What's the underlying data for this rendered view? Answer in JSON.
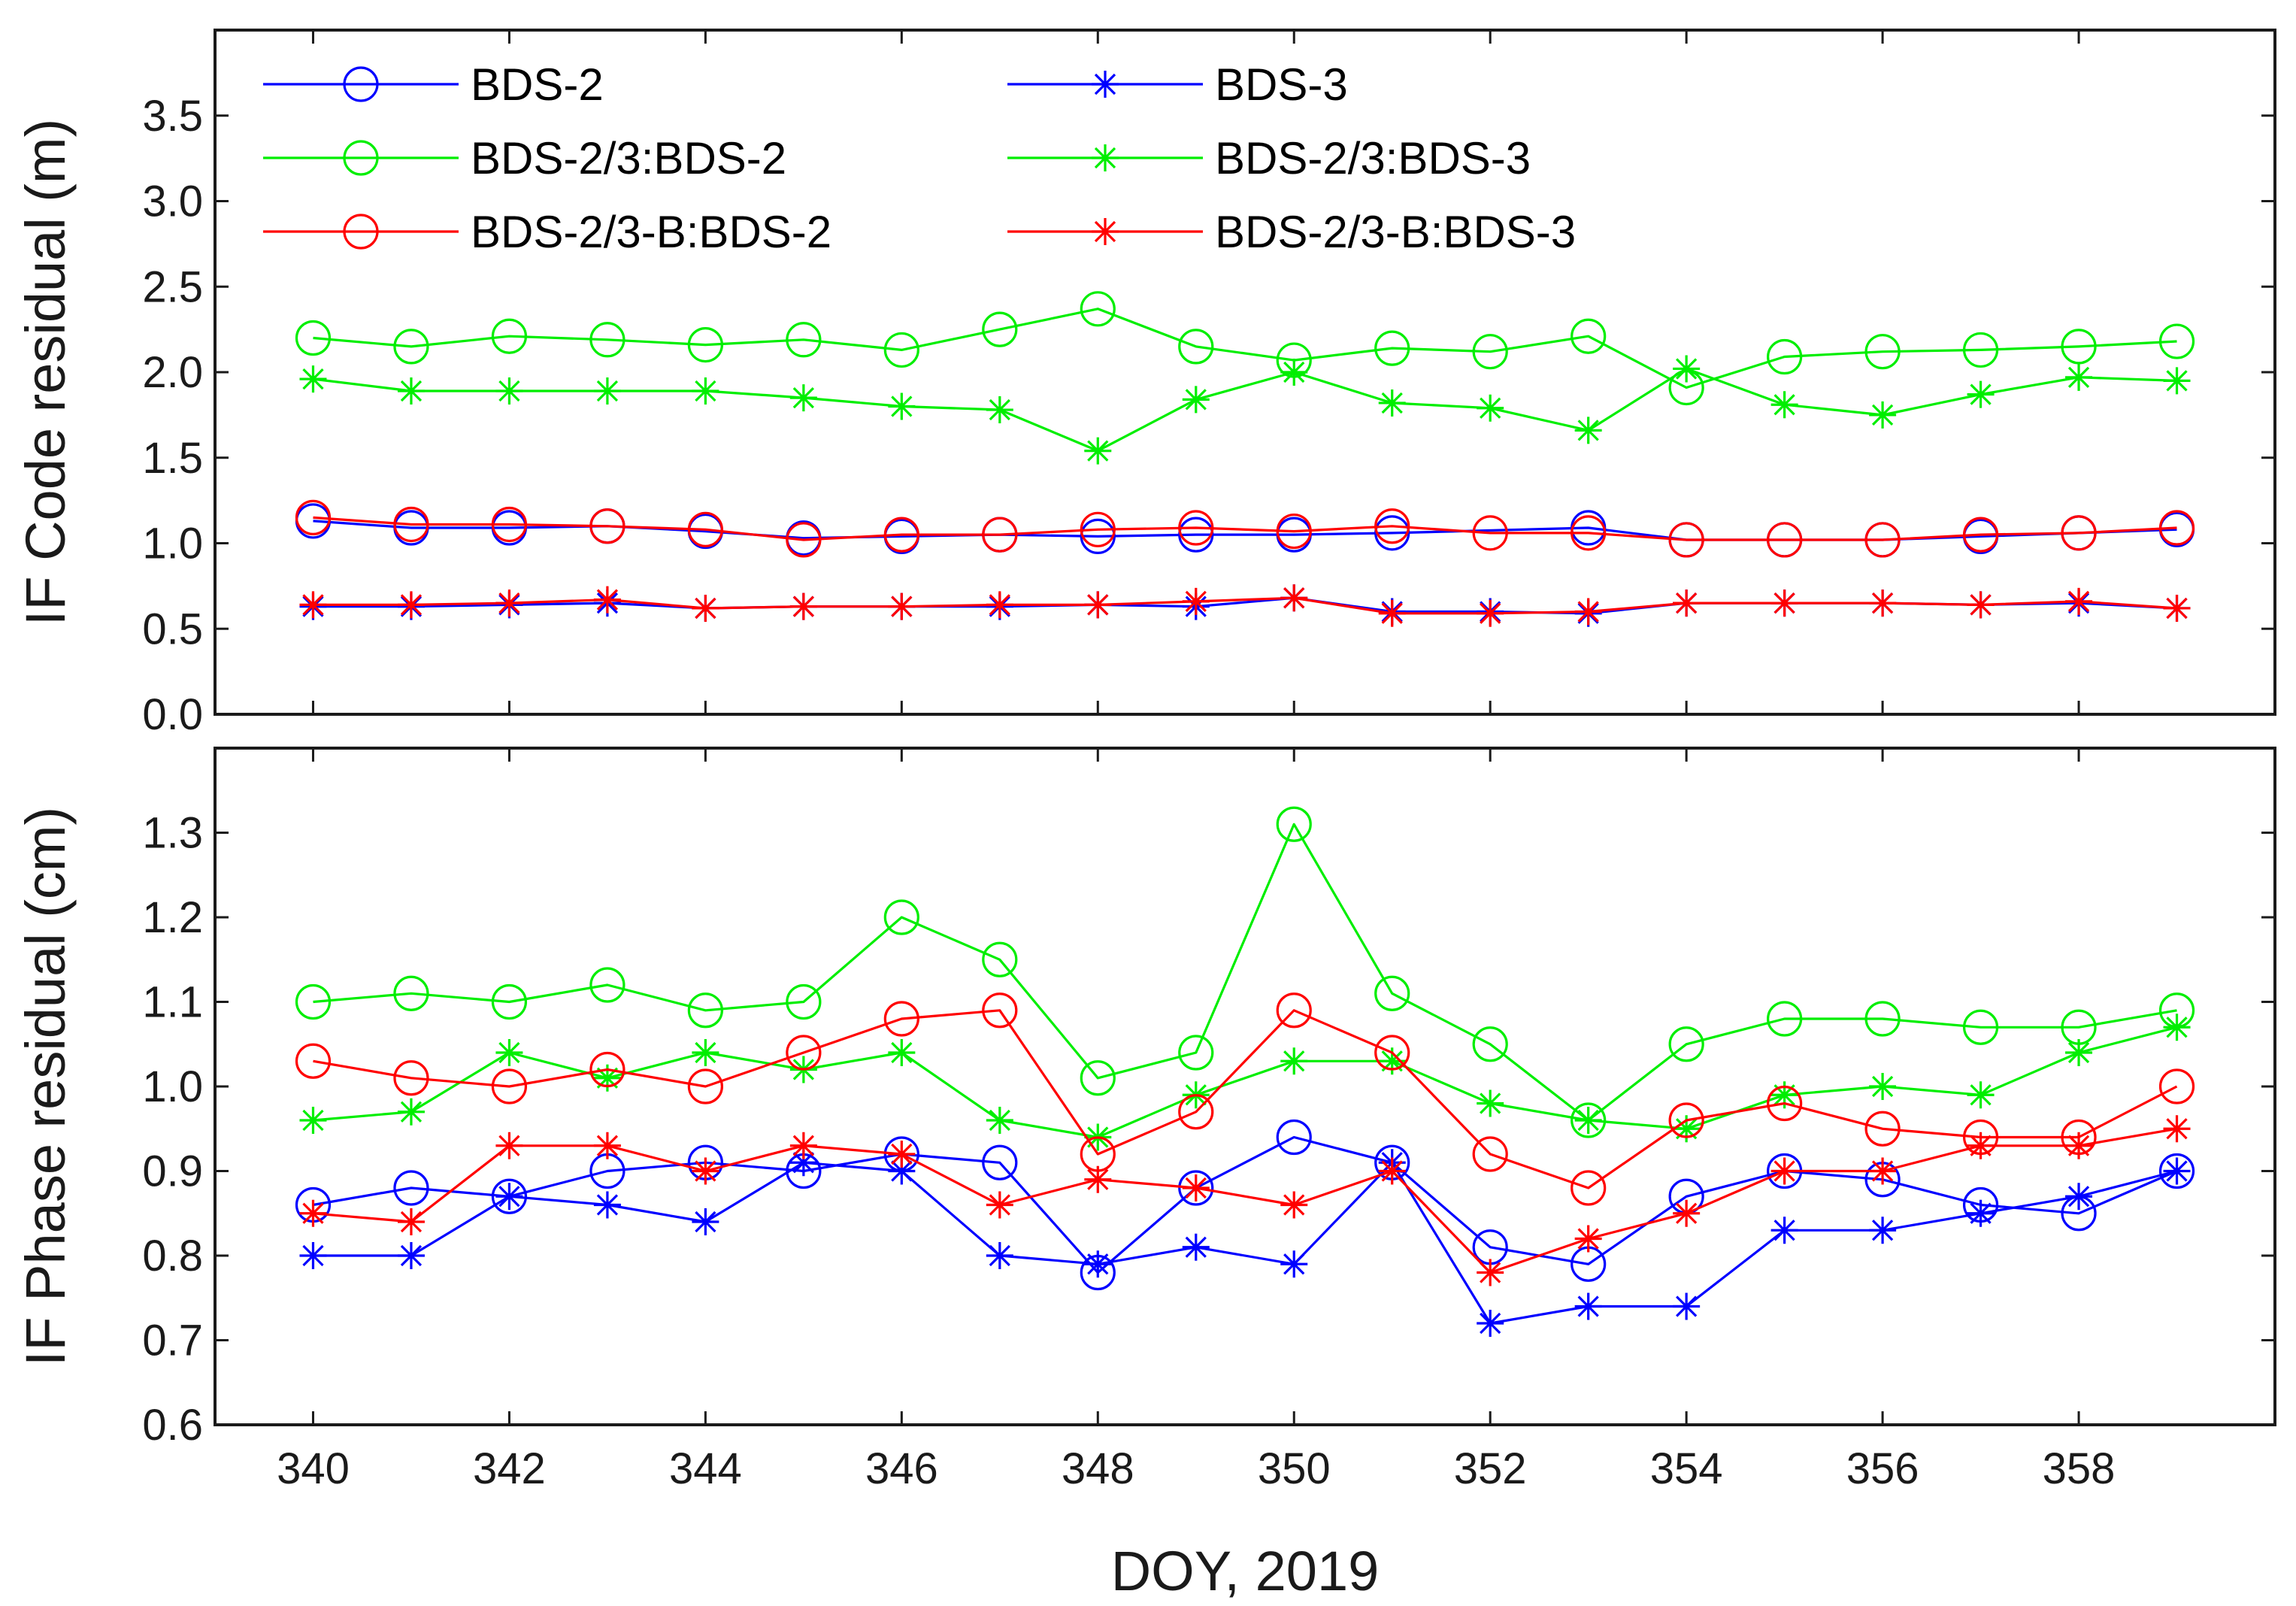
{
  "chart_data": [
    {
      "type": "line",
      "panel": "top",
      "title": "",
      "xlabel": "",
      "ylabel": "IF Code residual (m)",
      "xlim": [
        339,
        360
      ],
      "ylim": [
        0,
        4.0
      ],
      "xticks": [
        340,
        342,
        344,
        346,
        348,
        350,
        352,
        354,
        356,
        358
      ],
      "yticks": [
        0.0,
        0.5,
        1.0,
        1.5,
        2.0,
        2.5,
        3.0,
        3.5
      ],
      "ytick_labels": [
        "0.0",
        "0.5",
        "1.0",
        "1.5",
        "2.0",
        "2.5",
        "3.0",
        "3.5"
      ],
      "x": [
        340,
        341,
        342,
        343,
        344,
        345,
        346,
        347,
        348,
        349,
        350,
        351,
        352,
        353,
        354,
        355,
        356,
        357,
        358,
        359
      ],
      "series": [
        {
          "name": "BDS-2",
          "color": "#0000ff",
          "marker": "circle",
          "values": [
            1.13,
            1.09,
            1.09,
            1.1,
            1.07,
            1.03,
            1.04,
            1.05,
            1.04,
            1.05,
            1.05,
            1.06,
            null,
            1.09,
            1.02,
            1.02,
            1.02,
            1.04,
            1.06,
            1.08
          ]
        },
        {
          "name": "BDS-3",
          "color": "#0000ff",
          "marker": "star",
          "values": [
            0.63,
            0.63,
            0.64,
            0.65,
            0.62,
            0.63,
            0.63,
            0.63,
            0.64,
            0.63,
            0.68,
            0.6,
            0.6,
            0.59,
            0.65,
            0.65,
            0.65,
            0.64,
            0.65,
            0.62
          ]
        },
        {
          "name": "BDS-2/3:BDS-2",
          "color": "#00ee00",
          "marker": "circle",
          "values": [
            2.2,
            2.15,
            2.21,
            2.19,
            2.16,
            2.19,
            2.13,
            2.25,
            2.37,
            2.15,
            2.07,
            2.14,
            2.12,
            2.21,
            1.91,
            2.09,
            2.12,
            2.13,
            2.15,
            2.18
          ]
        },
        {
          "name": "BDS-2/3:BDS-3",
          "color": "#00ee00",
          "marker": "star",
          "values": [
            1.96,
            1.89,
            1.89,
            1.89,
            1.89,
            1.85,
            1.8,
            1.78,
            1.54,
            1.84,
            2.0,
            1.82,
            1.79,
            1.66,
            2.02,
            1.81,
            1.75,
            1.87,
            1.97,
            1.95
          ]
        },
        {
          "name": "BDS-2/3-B:BDS-2",
          "color": "#ff0000",
          "marker": "circle",
          "values": [
            1.15,
            1.11,
            1.11,
            1.1,
            1.08,
            1.02,
            1.05,
            1.05,
            1.08,
            1.09,
            1.07,
            1.1,
            1.06,
            1.06,
            1.02,
            1.02,
            1.02,
            1.05,
            1.06,
            1.09
          ]
        },
        {
          "name": "BDS-2/3-B:BDS-3",
          "color": "#ff0000",
          "marker": "star",
          "values": [
            0.64,
            0.64,
            0.65,
            0.67,
            0.62,
            0.63,
            0.63,
            0.64,
            0.64,
            0.66,
            0.68,
            0.59,
            0.59,
            0.6,
            0.65,
            0.65,
            0.65,
            0.64,
            0.66,
            0.62
          ]
        }
      ],
      "legend": "top-left"
    },
    {
      "type": "line",
      "panel": "bottom",
      "title": "",
      "xlabel": "DOY, 2019",
      "ylabel": "IF Phase residual (cm)",
      "xlim": [
        339,
        360
      ],
      "ylim": [
        0.6,
        1.4
      ],
      "xticks": [
        340,
        342,
        344,
        346,
        348,
        350,
        352,
        354,
        356,
        358
      ],
      "yticks": [
        0.6,
        0.7,
        0.8,
        0.9,
        1.0,
        1.1,
        1.2,
        1.3
      ],
      "ytick_labels": [
        "0.6",
        "0.7",
        "0.8",
        "0.9",
        "1.0",
        "1.1",
        "1.2",
        "1.3"
      ],
      "x": [
        340,
        341,
        342,
        343,
        344,
        345,
        346,
        347,
        348,
        349,
        350,
        351,
        352,
        353,
        354,
        355,
        356,
        357,
        358,
        359
      ],
      "series": [
        {
          "name": "BDS-2",
          "color": "#0000ff",
          "marker": "circle",
          "values": [
            0.86,
            0.88,
            0.87,
            0.9,
            0.91,
            0.9,
            0.92,
            0.91,
            0.78,
            0.88,
            0.94,
            0.91,
            0.81,
            0.79,
            0.87,
            0.9,
            0.89,
            0.86,
            0.85,
            0.9
          ]
        },
        {
          "name": "BDS-3",
          "color": "#0000ff",
          "marker": "star",
          "values": [
            0.8,
            0.8,
            0.87,
            0.86,
            0.84,
            0.91,
            0.9,
            0.8,
            0.79,
            0.81,
            0.79,
            0.91,
            0.72,
            0.74,
            0.74,
            0.83,
            0.83,
            0.85,
            0.87,
            0.9
          ]
        },
        {
          "name": "BDS-2/3:BDS-2",
          "color": "#00ee00",
          "marker": "circle",
          "values": [
            1.1,
            1.11,
            1.1,
            1.12,
            1.09,
            1.1,
            1.2,
            1.15,
            1.01,
            1.04,
            1.31,
            1.11,
            1.05,
            0.96,
            1.05,
            1.08,
            1.08,
            1.07,
            1.07,
            1.09
          ]
        },
        {
          "name": "BDS-2/3:BDS-3",
          "color": "#00ee00",
          "marker": "star",
          "values": [
            0.96,
            0.97,
            1.04,
            1.01,
            1.04,
            1.02,
            1.04,
            0.96,
            0.94,
            0.99,
            1.03,
            1.03,
            0.98,
            0.96,
            0.95,
            0.99,
            1.0,
            0.99,
            1.04,
            1.07
          ]
        },
        {
          "name": "BDS-2/3-B:BDS-2",
          "color": "#ff0000",
          "marker": "circle",
          "values": [
            1.03,
            1.01,
            1.0,
            1.02,
            1.0,
            1.04,
            1.08,
            1.09,
            0.92,
            0.97,
            1.09,
            1.04,
            0.92,
            0.88,
            0.96,
            0.98,
            0.95,
            0.94,
            0.94,
            1.0
          ]
        },
        {
          "name": "BDS-2/3-B:BDS-3",
          "color": "#ff0000",
          "marker": "star",
          "values": [
            0.85,
            0.84,
            0.93,
            0.93,
            0.9,
            0.93,
            0.92,
            0.86,
            0.89,
            0.88,
            0.86,
            0.9,
            0.78,
            0.82,
            0.85,
            0.9,
            0.9,
            0.93,
            0.93,
            0.95
          ]
        }
      ]
    }
  ],
  "legend_entries": [
    {
      "label": "BDS-2",
      "color": "#0000ff",
      "marker": "circle"
    },
    {
      "label": "BDS-3",
      "color": "#0000ff",
      "marker": "star"
    },
    {
      "label": "BDS-2/3:BDS-2",
      "color": "#00ee00",
      "marker": "circle"
    },
    {
      "label": "BDS-2/3:BDS-3",
      "color": "#00ee00",
      "marker": "star"
    },
    {
      "label": "BDS-2/3-B:BDS-2",
      "color": "#ff0000",
      "marker": "circle"
    },
    {
      "label": "BDS-2/3-B:BDS-3",
      "color": "#ff0000",
      "marker": "star"
    }
  ]
}
